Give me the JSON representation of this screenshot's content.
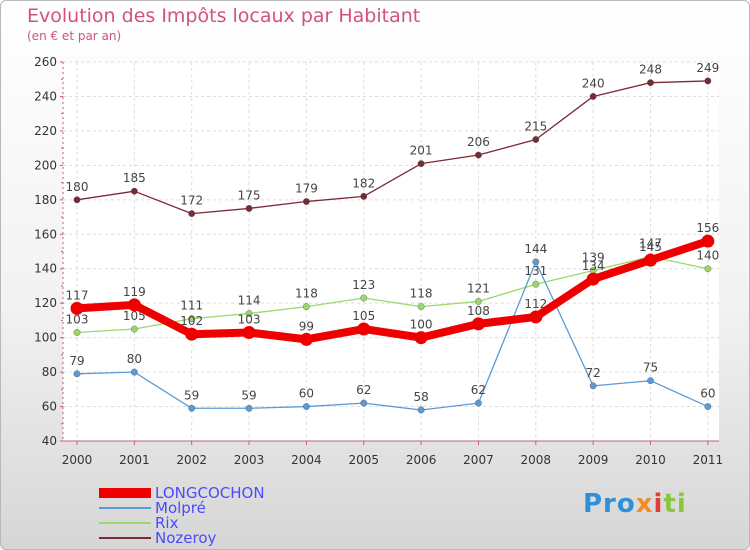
{
  "title": "Evolution des Impôts locaux par Habitant",
  "subtitle": "(en € et par an)",
  "brand": {
    "p1": "Pro",
    "p2": "x",
    "p3": "i",
    "p4": "ti",
    "colors": [
      "#2f8fd8",
      "#f28c28",
      "#e33b3b",
      "#8cc63e"
    ]
  },
  "chart_data": {
    "type": "line",
    "x": [
      "2000",
      "2001",
      "2002",
      "2003",
      "2004",
      "2005",
      "2006",
      "2007",
      "2008",
      "2009",
      "2010",
      "2011"
    ],
    "ylim": [
      40,
      260
    ],
    "yticks": [
      "40",
      "60",
      "80",
      "100",
      "120",
      "140",
      "160",
      "180",
      "200",
      "220",
      "240",
      "260"
    ],
    "grid": true,
    "legend_position": "bottom-left",
    "series": [
      {
        "name": "LONGCOCHON",
        "color": "#ee0000",
        "values": [
          117,
          119,
          102,
          103,
          99,
          105,
          100,
          108,
          112,
          134,
          145,
          156
        ],
        "labels": [
          "117",
          "119",
          "102",
          "103",
          "99",
          "105",
          "100",
          "108",
          "112",
          "134",
          "145",
          "156"
        ]
      },
      {
        "name": "Molpré",
        "color": "#5b9bd5",
        "values": [
          79,
          80,
          59,
          59,
          60,
          62,
          58,
          62,
          144,
          72,
          75,
          60
        ],
        "labels": [
          "79",
          "80",
          "59",
          "59",
          "60",
          "62",
          "58",
          "62",
          "144",
          "72",
          "75",
          "60"
        ]
      },
      {
        "name": "Rix",
        "color": "#9bd86b",
        "values": [
          103,
          105,
          111,
          114,
          118,
          123,
          118,
          121,
          131,
          139,
          147,
          140
        ],
        "labels": [
          "103",
          "105",
          "111",
          "114",
          "118",
          "123",
          "118",
          "121",
          "131",
          "139",
          "147",
          "140"
        ]
      },
      {
        "name": "Nozeroy",
        "color": "#7a2a35",
        "values": [
          180,
          185,
          172,
          175,
          179,
          182,
          201,
          206,
          215,
          240,
          248,
          249
        ],
        "labels": [
          "180",
          "185",
          "172",
          "175",
          "179",
          "182",
          "201",
          "206",
          "215",
          "240",
          "248",
          "249"
        ]
      }
    ]
  }
}
